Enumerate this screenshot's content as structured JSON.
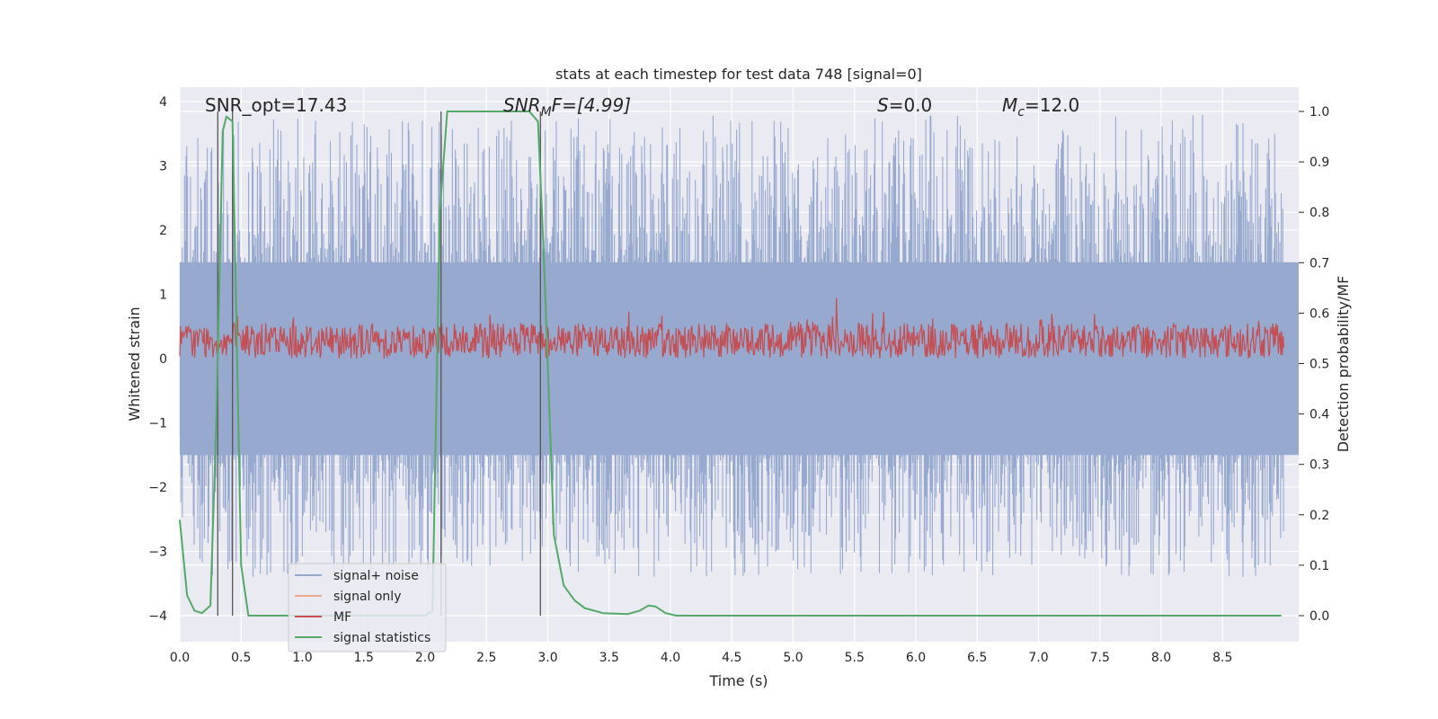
{
  "chart_data": {
    "type": "line",
    "title": "stats at each timestep for test data 748 [signal=0]",
    "xlabel": "Time (s)",
    "ylabel": "Whitened strain",
    "y2label": "Detection probability/MF",
    "xlim": [
      0.0,
      9.0
    ],
    "ylim": [
      -4.4,
      4.2
    ],
    "y2lim": [
      -0.05,
      1.04
    ],
    "x_ticks": [
      "0.0",
      "0.5",
      "1.0",
      "1.5",
      "2.0",
      "2.5",
      "3.0",
      "3.5",
      "4.0",
      "4.5",
      "5.0",
      "5.5",
      "6.0",
      "6.5",
      "7.0",
      "7.5",
      "8.0",
      "8.5"
    ],
    "y_ticks": [
      "4",
      "3",
      "2",
      "1",
      "0",
      "−1",
      "−2",
      "−3",
      "−4"
    ],
    "y2_ticks": [
      "1.0",
      "0.9",
      "0.8",
      "0.7",
      "0.6",
      "0.5",
      "0.4",
      "0.3",
      "0.2",
      "0.1",
      "0.0"
    ],
    "grid": true,
    "legend_position": "lower-left",
    "annotations": {
      "snr_opt": "SNR_opt=17.43",
      "snr_mf_main": "SNR",
      "snr_mf_sub": "M",
      "snr_mf_rest": "F=[4.99]",
      "s_main": "S",
      "s_rest": "=0.0",
      "mc_main": "M",
      "mc_sub": "c",
      "mc_rest": "=12.0"
    },
    "series": [
      {
        "name": "signal+ noise",
        "color": "#97a9cf",
        "envelope_y": [
          -1.5,
          1.5
        ],
        "spike_y": [
          -3.4,
          3.8
        ]
      },
      {
        "name": "signal only",
        "color": "#eeaa90",
        "values": []
      },
      {
        "name": "MF",
        "color": "#c44e52",
        "envelope_y2": [
          0.51,
          0.58
        ],
        "peak_y2": {
          "x": 5.35,
          "y": 0.63
        }
      },
      {
        "name": "signal statistics",
        "color": "#55a868",
        "x": [
          0.0,
          0.06,
          0.12,
          0.18,
          0.25,
          0.3,
          0.35,
          0.38,
          0.43,
          0.5,
          0.56,
          1.0,
          1.5,
          2.0,
          2.06,
          2.12,
          2.18,
          2.5,
          2.75,
          2.85,
          2.92,
          2.97,
          3.05,
          3.13,
          3.22,
          3.3,
          3.45,
          3.65,
          3.75,
          3.82,
          3.88,
          3.96,
          4.05,
          4.5,
          6.0,
          8.0,
          8.98
        ],
        "values": [
          0.19,
          0.04,
          0.01,
          0.005,
          0.02,
          0.4,
          0.96,
          0.99,
          0.98,
          0.1,
          0.0,
          0.0,
          0.0,
          0.0,
          0.01,
          0.8,
          1.0,
          1.0,
          1.0,
          1.0,
          0.98,
          0.7,
          0.16,
          0.06,
          0.03,
          0.015,
          0.005,
          0.003,
          0.01,
          0.02,
          0.018,
          0.005,
          0.0,
          0.0,
          0.0,
          0.0,
          0.0
        ]
      }
    ],
    "vertical_lines_x": [
      0.31,
      0.43,
      2.13,
      2.94
    ],
    "vertical_lines_color": "#555555"
  }
}
